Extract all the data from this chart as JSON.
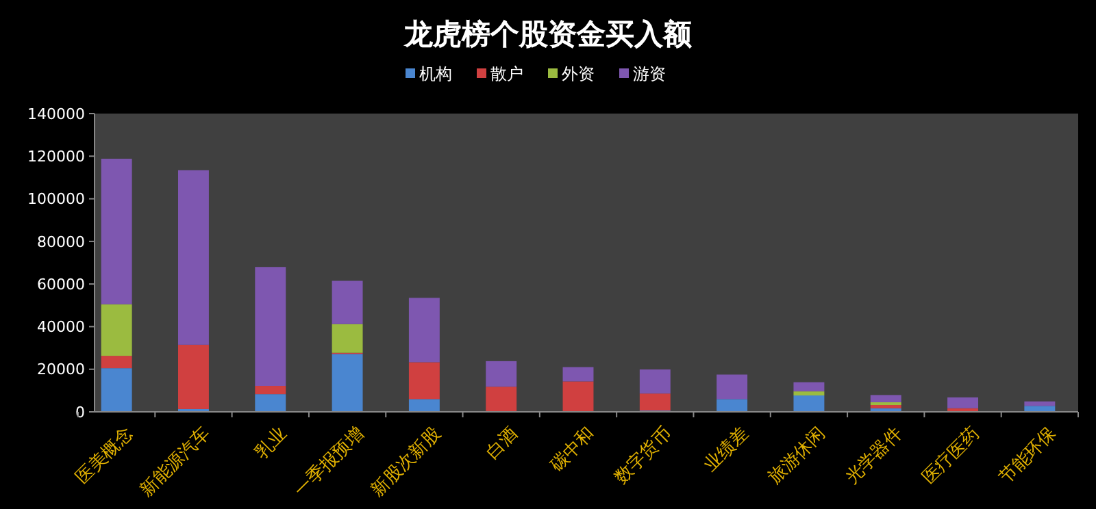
{
  "chart_data": {
    "type": "bar",
    "title": "龙虎榜个股资金买入额",
    "stacked": true,
    "legend": "top",
    "grid": false,
    "categories": [
      "医美概念",
      "新能源汽车",
      "乳业",
      "一季报预增",
      "新股次新股",
      "白酒",
      "碳中和",
      "数字货币",
      "业绩差",
      "旅游休闲",
      "光学器件",
      "医疗医药",
      "节能环保"
    ],
    "ylim": [
      0,
      140000
    ],
    "yticks": [
      0,
      20000,
      40000,
      60000,
      80000,
      100000,
      120000,
      140000
    ],
    "series": [
      {
        "name": "机构",
        "color": "#4a86d0",
        "values": [
          20500,
          1300,
          8300,
          27200,
          6000,
          0,
          0,
          600,
          6000,
          7700,
          1700,
          0,
          2800
        ]
      },
      {
        "name": "散户",
        "color": "#d04040",
        "values": [
          5800,
          30200,
          3900,
          500,
          17300,
          11800,
          14300,
          8000,
          0,
          0,
          1500,
          1700,
          0
        ]
      },
      {
        "name": "外资",
        "color": "#9bbb40",
        "values": [
          24200,
          0,
          0,
          13500,
          0,
          0,
          0,
          0,
          0,
          1900,
          1300,
          0,
          0
        ]
      },
      {
        "name": "游资",
        "color": "#7e57b0",
        "values": [
          68300,
          81900,
          55800,
          20300,
          30200,
          12000,
          6700,
          11300,
          11500,
          4300,
          3400,
          5100,
          2100
        ]
      }
    ]
  }
}
